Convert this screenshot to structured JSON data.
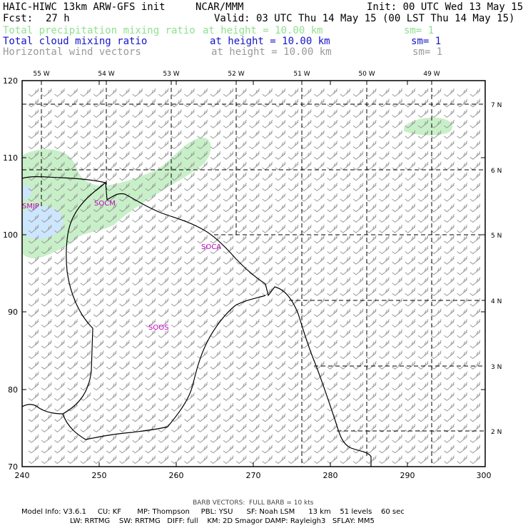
{
  "header": {
    "model_title": "HAIC-HIWC 13km ARW-GFS init",
    "org": "NCAR/MMM",
    "init": "Init: 00 UTC Wed 13 May 15",
    "fcst_label": "Fcst:",
    "fcst_value": "27 h",
    "valid": "Valid: 03 UTC Thu 14 May 15 (00 LST Thu 14 May 15)"
  },
  "fields": [
    {
      "name": "Total precipitation mixing ratio",
      "height": "at height = 10.00 km",
      "sm": "sm= 1",
      "color": "#8fe08f"
    },
    {
      "name": "Total cloud mixing ratio",
      "height": "at height = 10.00 km",
      "sm": "sm= 1",
      "color": "#1414c8"
    },
    {
      "name": "Horizontal wind vectors",
      "height": "at height = 10.00 km",
      "sm": "sm= 1",
      "color": "#9a9a9a"
    }
  ],
  "map": {
    "x_ticks": [
      "240",
      "250",
      "260",
      "270",
      "280",
      "290",
      "300"
    ],
    "y_ticks": [
      "70",
      "80",
      "90",
      "100",
      "110",
      "120"
    ],
    "lon_labels": [
      "55 W",
      "54 W",
      "53 W",
      "52 W",
      "51 W",
      "50 W",
      "49 W"
    ],
    "lat_labels": [
      "7 N",
      "6 N",
      "5 N",
      "4 N",
      "3 N",
      "2 N"
    ],
    "stations": [
      "SMJP",
      "SOCM",
      "SOCA",
      "SOOS"
    ],
    "colors": {
      "precip": "#c8f0c8",
      "cloud": "#cce6ff",
      "station": "#c000c0",
      "barb": "#9a9a9a"
    }
  },
  "footer": {
    "barb_note": "BARB VECTORS:  FULL BARB = 10 kts",
    "line1": "Model Info: V3.6.1     CU: KF       MP: Thompson     PBL: YSU      SF: Noah LSM      13 km    51 levels    60 sec",
    "line2": "LW: RRTMG    SW: RRTMG   DIFF: full    KM: 2D Smagor DAMP: Rayleigh3   SFLAY: MM5"
  }
}
